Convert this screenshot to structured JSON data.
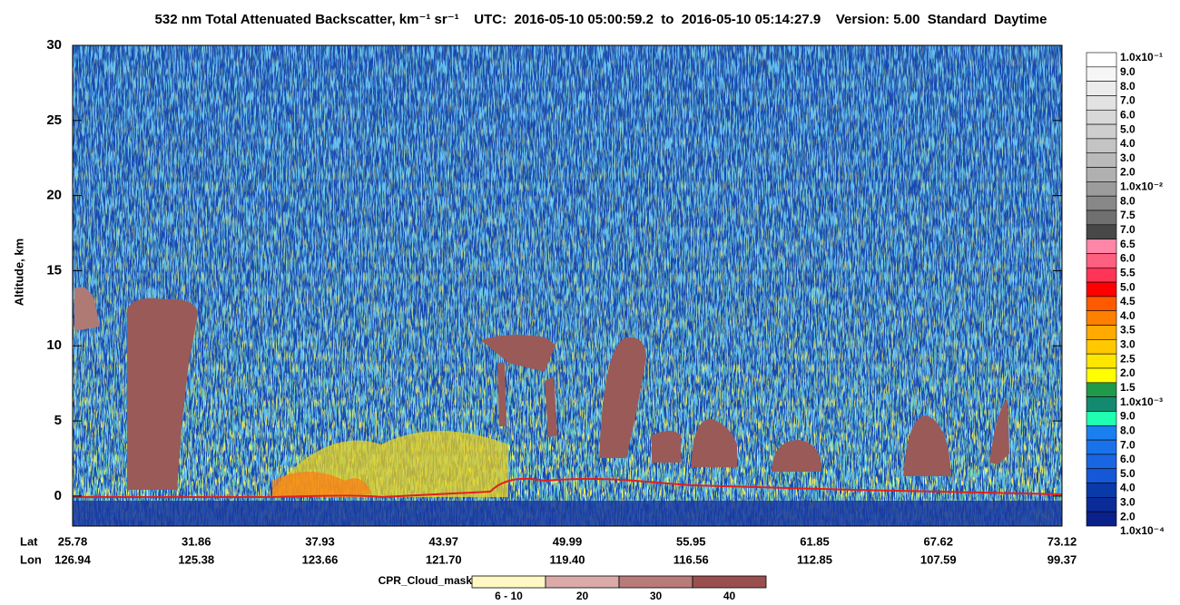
{
  "chart_data": {
    "type": "curtain",
    "title": "532 nm Total Attenuated Backscatter, km⁻¹ sr⁻¹    UTC:  2016-05-10 05:00:59.2  to  2016-05-10 05:14:27.9    Version: 5.00  Standard  Daytime",
    "y_label": "Altitude, km",
    "ylim": [
      -2,
      30
    ],
    "yticks": [
      0,
      5,
      10,
      15,
      20,
      25,
      30
    ],
    "x_row_labels": [
      "Lat",
      "Lon"
    ],
    "lat": [
      "25.78",
      "31.86",
      "37.93",
      "43.97",
      "49.99",
      "55.95",
      "61.85",
      "67.62",
      "73.12"
    ],
    "lon": [
      "126.94",
      "125.38",
      "123.66",
      "121.70",
      "119.40",
      "116.56",
      "112.85",
      "107.59",
      "99.37"
    ],
    "colorbar": {
      "labels": [
        "1.0x10⁻¹",
        "9.0",
        "8.0",
        "7.0",
        "6.0",
        "5.0",
        "4.0",
        "3.0",
        "2.0",
        "1.0x10⁻²",
        "8.0",
        "7.5",
        "7.0",
        "6.5",
        "6.0",
        "5.5",
        "5.0",
        "4.5",
        "4.0",
        "3.5",
        "3.0",
        "2.5",
        "2.0",
        "1.5",
        "1.0x10⁻³",
        "9.0",
        "8.0",
        "7.0",
        "6.0",
        "5.0",
        "4.0",
        "3.0",
        "2.0",
        "1.0x10⁻⁴"
      ],
      "colors": [
        "#ffffff",
        "#f6f6f6",
        "#ececec",
        "#e2e2e2",
        "#d8d8d8",
        "#cecece",
        "#c4c4c4",
        "#bababa",
        "#b0b0b0",
        "#9c9c9c",
        "#888888",
        "#707070",
        "#484848",
        "#ff86a6",
        "#ff6080",
        "#ff3456",
        "#ff0000",
        "#ff5a00",
        "#ff8000",
        "#ffaa00",
        "#ffc800",
        "#ffe600",
        "#ffff00",
        "#1f9a4a",
        "#128a70",
        "#20ffb0",
        "#1a80f0",
        "#1a72ea",
        "#1a66e2",
        "#1458d8",
        "#0a3aa8",
        "#0a2c98",
        "#0a208a"
      ]
    },
    "cloud_mask": {
      "title": "CPR_Cloud_mask",
      "labels": [
        "6 - 10",
        "20",
        "30",
        "40"
      ],
      "colors": [
        "#fff8c4",
        "#d9aaa8",
        "#b97a7a",
        "#9a4f4f"
      ]
    }
  }
}
